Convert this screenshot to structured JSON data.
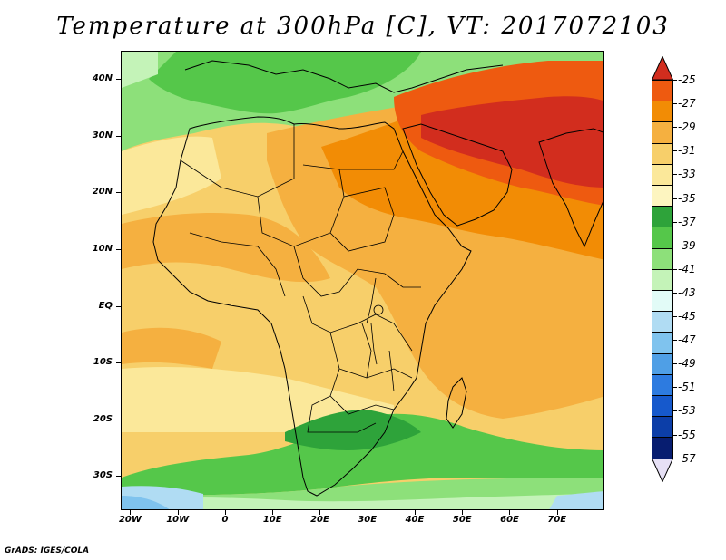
{
  "title": "Temperature at 300hPa [C], VT: 2017072103",
  "footer": "GrADS: IGES/COLA",
  "map": {
    "lat_labels": [
      "40N",
      "30N",
      "20N",
      "10N",
      "EQ",
      "10S",
      "20S",
      "30S"
    ],
    "lat_values": [
      40,
      30,
      20,
      10,
      0,
      -10,
      -20,
      -30
    ],
    "lon_labels": [
      "20W",
      "10W",
      "0",
      "10E",
      "20E",
      "30E",
      "40E",
      "50E",
      "60E",
      "70E"
    ],
    "lon_values": [
      -20,
      -10,
      0,
      10,
      20,
      30,
      40,
      50,
      60,
      70
    ],
    "extent": {
      "lon_min": -22,
      "lon_max": 80,
      "lat_min": -36,
      "lat_max": 45
    }
  },
  "colorbar": {
    "labels": [
      "-25",
      "-27",
      "-29",
      "-31",
      "-33",
      "-35",
      "-37",
      "-39",
      "-41",
      "-43",
      "-45",
      "-47",
      "-49",
      "-51",
      "-53",
      "-55",
      "-57"
    ],
    "colors": [
      "#d22d1e",
      "#ee5a10",
      "#f28c05",
      "#f5b040",
      "#f7cf6a",
      "#fbe89a",
      "#fdf5c0",
      "#2ea33a",
      "#55c74a",
      "#8de07a",
      "#c4f3b8",
      "#e2fbf7",
      "#b0dcf3",
      "#7fc3ee",
      "#4f9fe6",
      "#2d7be0",
      "#1659cc",
      "#0c3ea8",
      "#071d70",
      "#e6e0f5"
    ]
  }
}
